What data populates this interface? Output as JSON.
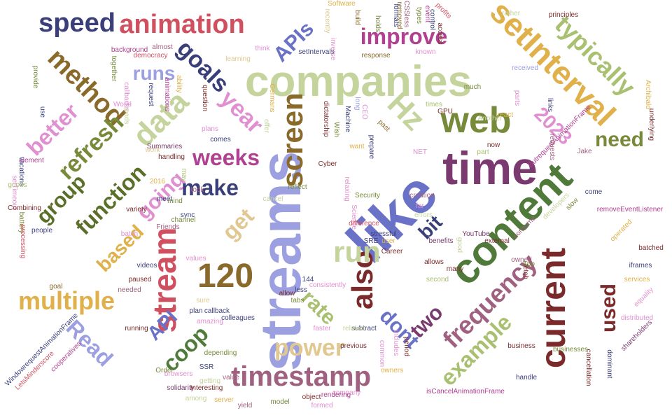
{
  "colors": {
    "sage": "#c4d49c",
    "olive": "#768a3a",
    "darkolive": "#5a6f28",
    "plum": "#7a3a6f",
    "lavender": "#9ca0e0",
    "periwinkle": "#6a72c8",
    "navy": "#3a3f7a",
    "gold": "#e0b04a",
    "tan": "#e0c890",
    "brown": "#8a6a2a",
    "maroon": "#7a2a2a",
    "red": "#d05060",
    "pink": "#e090d0",
    "magenta": "#b04090",
    "green": "#4f7a3a",
    "lime": "#a8c070",
    "mauve": "#a06080"
  },
  "words": [
    {
      "text": "streams",
      "color": "lavender"
    },
    {
      "text": "like",
      "color": "periwinkle"
    },
    {
      "text": "companies",
      "color": "sage"
    },
    {
      "text": "content",
      "color": "green"
    },
    {
      "text": "time",
      "color": "plum"
    },
    {
      "text": "web",
      "color": "olive"
    },
    {
      "text": "setInterval",
      "color": "gold"
    },
    {
      "text": "current",
      "color": "maroon"
    },
    {
      "text": "stream",
      "color": "red"
    },
    {
      "text": "120",
      "color": "brown"
    },
    {
      "text": "screen",
      "color": "brown"
    },
    {
      "text": "also",
      "color": "maroon"
    },
    {
      "text": "data",
      "color": "sage"
    },
    {
      "text": "Hz",
      "color": "sage"
    },
    {
      "text": "run",
      "color": "sage"
    },
    {
      "text": "timestamp",
      "color": "mauve"
    },
    {
      "text": "frequency",
      "color": "mauve"
    },
    {
      "text": "typically",
      "color": "lime"
    },
    {
      "text": "animation",
      "color": "red"
    },
    {
      "text": "speed",
      "color": "navy"
    },
    {
      "text": "method",
      "color": "brown"
    },
    {
      "text": "improve",
      "color": "magenta"
    },
    {
      "text": "goals",
      "color": "navy"
    },
    {
      "text": "APIs",
      "color": "periwinkle"
    },
    {
      "text": "2023",
      "color": "pink"
    },
    {
      "text": "year",
      "color": "pink"
    },
    {
      "text": "refresh",
      "color": "olive"
    },
    {
      "text": "better",
      "color": "pink"
    },
    {
      "text": "function",
      "color": "darkolive"
    },
    {
      "text": "group",
      "color": "darkolive"
    },
    {
      "text": "multiple",
      "color": "gold"
    },
    {
      "text": "Read",
      "color": "lavender"
    },
    {
      "text": "based",
      "color": "gold"
    },
    {
      "text": "going",
      "color": "pink"
    },
    {
      "text": "weeks",
      "color": "magenta"
    },
    {
      "text": "make",
      "color": "navy"
    },
    {
      "text": "get",
      "color": "tan"
    },
    {
      "text": "need",
      "color": "olive"
    },
    {
      "text": "example",
      "color": "lime"
    },
    {
      "text": "used",
      "color": "maroon"
    },
    {
      "text": "power",
      "color": "tan"
    },
    {
      "text": "dont",
      "color": "periwinkle"
    },
    {
      "text": "rate",
      "color": "lime"
    },
    {
      "text": "two",
      "color": "plum"
    },
    {
      "text": "bit",
      "color": "navy"
    },
    {
      "text": "runs",
      "color": "lavender"
    },
    {
      "text": "coop",
      "color": "green"
    },
    {
      "text": "API",
      "color": "periwinkle"
    },
    {
      "text": "Software",
      "color": "gold"
    },
    {
      "text": "removed",
      "color": "brown"
    },
    {
      "text": "event",
      "color": "magenta"
    },
    {
      "text": "profits",
      "color": "red"
    },
    {
      "text": "recently",
      "color": "tan"
    },
    {
      "text": "build",
      "color": "brown"
    },
    {
      "text": "CSSless",
      "color": "mauve"
    },
    {
      "text": "types",
      "color": "olive"
    },
    {
      "text": "control",
      "color": "navy"
    },
    {
      "text": "access",
      "color": "maroon"
    },
    {
      "text": "rather",
      "color": "sage"
    },
    {
      "text": "principles",
      "color": "maroon"
    },
    {
      "text": "together",
      "color": "olive"
    },
    {
      "text": "democracy",
      "color": "red"
    },
    {
      "text": "background",
      "color": "magenta"
    },
    {
      "text": "think",
      "color": "pink"
    },
    {
      "text": "almost",
      "color": "mauve"
    },
    {
      "text": "ability",
      "color": "gold"
    },
    {
      "text": "learning",
      "color": "tan"
    },
    {
      "text": "animations",
      "color": "magenta"
    },
    {
      "text": "question",
      "color": "maroon"
    },
    {
      "text": "Germans",
      "color": "gold"
    },
    {
      "text": "formats",
      "color": "navy"
    },
    {
      "text": "holds",
      "color": "olive"
    },
    {
      "text": "setIntervals",
      "color": "navy"
    },
    {
      "text": "inverse",
      "color": "pink"
    },
    {
      "text": "response",
      "color": "brown"
    },
    {
      "text": "known",
      "color": "pink"
    },
    {
      "text": "received",
      "color": "lavender"
    },
    {
      "text": "parts",
      "color": "pink"
    },
    {
      "text": "GPU",
      "color": "maroon"
    },
    {
      "text": "much",
      "color": "olive"
    },
    {
      "text": "times",
      "color": "lime"
    },
    {
      "text": "react",
      "color": "gold"
    },
    {
      "text": "Another",
      "color": "sage"
    },
    {
      "text": "links",
      "color": "navy"
    },
    {
      "text": "Archibald",
      "color": "gold"
    },
    {
      "text": "underlying",
      "color": "maroon"
    },
    {
      "text": "ButrequestAnimationFrame",
      "color": "magenta"
    },
    {
      "text": "Jake",
      "color": "mauve"
    },
    {
      "text": "requests",
      "color": "mauve"
    },
    {
      "text": "now",
      "color": "maroon"
    },
    {
      "text": "part",
      "color": "lime"
    },
    {
      "text": "NET",
      "color": "pink"
    },
    {
      "text": "want",
      "color": "gold"
    },
    {
      "text": "prepare",
      "color": "navy"
    },
    {
      "text": "past",
      "color": "brown"
    },
    {
      "text": "Wish",
      "color": "olive"
    },
    {
      "text": "Machine",
      "color": "navy"
    },
    {
      "text": "CEO",
      "color": "pink"
    },
    {
      "text": "long",
      "color": "lavender"
    },
    {
      "text": "dictatorship",
      "color": "maroon"
    },
    {
      "text": "provide",
      "color": "olive"
    },
    {
      "text": "use",
      "color": "navy"
    },
    {
      "text": "callbacks",
      "color": "pink"
    },
    {
      "text": "World",
      "color": "pink"
    },
    {
      "text": "reads",
      "color": "sage"
    },
    {
      "text": "request",
      "color": "navy"
    },
    {
      "text": "plans",
      "color": "pink"
    },
    {
      "text": "comes",
      "color": "navy"
    },
    {
      "text": "offer",
      "color": "sage"
    },
    {
      "text": "element",
      "color": "magenta"
    },
    {
      "text": "work",
      "color": "tan"
    },
    {
      "text": "handling",
      "color": "maroon"
    },
    {
      "text": "vacations",
      "color": "navy"
    },
    {
      "text": "may",
      "color": "lime"
    },
    {
      "text": "Summaries",
      "color": "plum"
    },
    {
      "text": "goods",
      "color": "lime"
    },
    {
      "text": "setTimeout",
      "color": "pink"
    },
    {
      "text": "Combining",
      "color": "maroon"
    },
    {
      "text": "battery",
      "color": "olive"
    },
    {
      "text": "processing",
      "color": "red"
    },
    {
      "text": "people",
      "color": "navy"
    },
    {
      "text": "variety",
      "color": "maroon"
    },
    {
      "text": "batch",
      "color": "pink"
    },
    {
      "text": "meet",
      "color": "navy"
    },
    {
      "text": "mind",
      "color": "olive"
    },
    {
      "text": "Friends",
      "color": "mauve"
    },
    {
      "text": "channel",
      "color": "olive"
    },
    {
      "text": "took",
      "color": "mauve"
    },
    {
      "text": "sync",
      "color": "navy"
    },
    {
      "text": "cancel",
      "color": "sage"
    },
    {
      "text": "reflect",
      "color": "olive"
    },
    {
      "text": "Cyber",
      "color": "maroon"
    },
    {
      "text": "relaxing",
      "color": "pink"
    },
    {
      "text": "Security",
      "color": "olive"
    },
    {
      "text": "Science",
      "color": "pink"
    },
    {
      "text": "difference",
      "color": "red"
    },
    {
      "text": "SRE",
      "color": "navy"
    },
    {
      "text": "stressful",
      "color": "navy"
    },
    {
      "text": "user",
      "color": "gold"
    },
    {
      "text": "Career",
      "color": "maroon"
    },
    {
      "text": "creation",
      "color": "mauve"
    },
    {
      "text": "far",
      "color": "pink"
    },
    {
      "text": "errors",
      "color": "sage"
    },
    {
      "text": "YouTube",
      "color": "plum"
    },
    {
      "text": "good",
      "color": "sage"
    },
    {
      "text": "external",
      "color": "maroon"
    },
    {
      "text": "consume",
      "color": "mauve"
    },
    {
      "text": "developers",
      "color": "sage"
    },
    {
      "text": "slow",
      "color": "olive"
    },
    {
      "text": "come",
      "color": "navy"
    },
    {
      "text": "removeEventListener",
      "color": "magenta"
    },
    {
      "text": "operated",
      "color": "gold"
    },
    {
      "text": "batched",
      "color": "maroon"
    },
    {
      "text": "iframes",
      "color": "navy"
    },
    {
      "text": "services",
      "color": "gold"
    },
    {
      "text": "equality",
      "color": "pink"
    },
    {
      "text": "distributed",
      "color": "pink"
    },
    {
      "text": "shareholders",
      "color": "plum"
    },
    {
      "text": "dominant",
      "color": "navy"
    },
    {
      "text": "cancellation",
      "color": "maroon"
    },
    {
      "text": "businesses",
      "color": "olive"
    },
    {
      "text": "business",
      "color": "maroon"
    },
    {
      "text": "handle",
      "color": "navy"
    },
    {
      "text": "fetch",
      "color": "maroon"
    },
    {
      "text": "App",
      "color": "olive"
    },
    {
      "text": "owned",
      "color": "mauve"
    },
    {
      "text": "benefits",
      "color": "plum"
    },
    {
      "text": "isCancelAnimationFrame",
      "color": "magenta"
    },
    {
      "text": "period",
      "color": "maroon"
    },
    {
      "text": "includes",
      "color": "pink"
    },
    {
      "text": "common",
      "color": "pink"
    },
    {
      "text": "owners",
      "color": "gold"
    },
    {
      "text": "company",
      "color": "pink"
    },
    {
      "text": "rendering",
      "color": "magenta"
    },
    {
      "text": "formed",
      "color": "pink"
    },
    {
      "text": "object",
      "color": "maroon"
    },
    {
      "text": "model",
      "color": "olive"
    },
    {
      "text": "yield",
      "color": "mauve"
    },
    {
      "text": "server",
      "color": "gold"
    },
    {
      "text": "value",
      "color": "mauve"
    },
    {
      "text": "getting",
      "color": "sage"
    },
    {
      "text": "SSR",
      "color": "navy"
    },
    {
      "text": "previous",
      "color": "maroon"
    },
    {
      "text": "subtract",
      "color": "navy"
    },
    {
      "text": "related",
      "color": "sage"
    },
    {
      "text": "faster",
      "color": "pink"
    },
    {
      "text": "consistently",
      "color": "pink"
    },
    {
      "text": "144",
      "color": "navy"
    },
    {
      "text": "tabs",
      "color": "olive"
    },
    {
      "text": "less",
      "color": "navy"
    },
    {
      "text": "allow",
      "color": "maroon"
    },
    {
      "text": "LetsMinderscore",
      "color": "red"
    },
    {
      "text": "WindowrequestAnimationFrame",
      "color": "navy"
    },
    {
      "text": "cooperatives",
      "color": "magenta"
    },
    {
      "text": "goal",
      "color": "brown"
    },
    {
      "text": "running",
      "color": "maroon"
    },
    {
      "text": "Order",
      "color": "olive"
    },
    {
      "text": "browsers",
      "color": "pink"
    },
    {
      "text": "solidarity",
      "color": "plum"
    },
    {
      "text": "Interesting",
      "color": "maroon"
    },
    {
      "text": "among",
      "color": "sage"
    },
    {
      "text": "depending",
      "color": "olive"
    },
    {
      "text": "amazing",
      "color": "pink"
    },
    {
      "text": "plan",
      "color": "navy"
    },
    {
      "text": "sure",
      "color": "tan"
    },
    {
      "text": "callback",
      "color": "navy"
    },
    {
      "text": "colleagues",
      "color": "navy"
    },
    {
      "text": "values",
      "color": "pink"
    },
    {
      "text": "videos",
      "color": "navy"
    },
    {
      "text": "paused",
      "color": "maroon"
    },
    {
      "text": "needed",
      "color": "mauve"
    },
    {
      "text": "2016",
      "color": "gold"
    },
    {
      "text": "allows",
      "color": "maroon"
    },
    {
      "text": "second",
      "color": "lime"
    },
    {
      "text": "many",
      "color": "maroon"
    }
  ]
}
